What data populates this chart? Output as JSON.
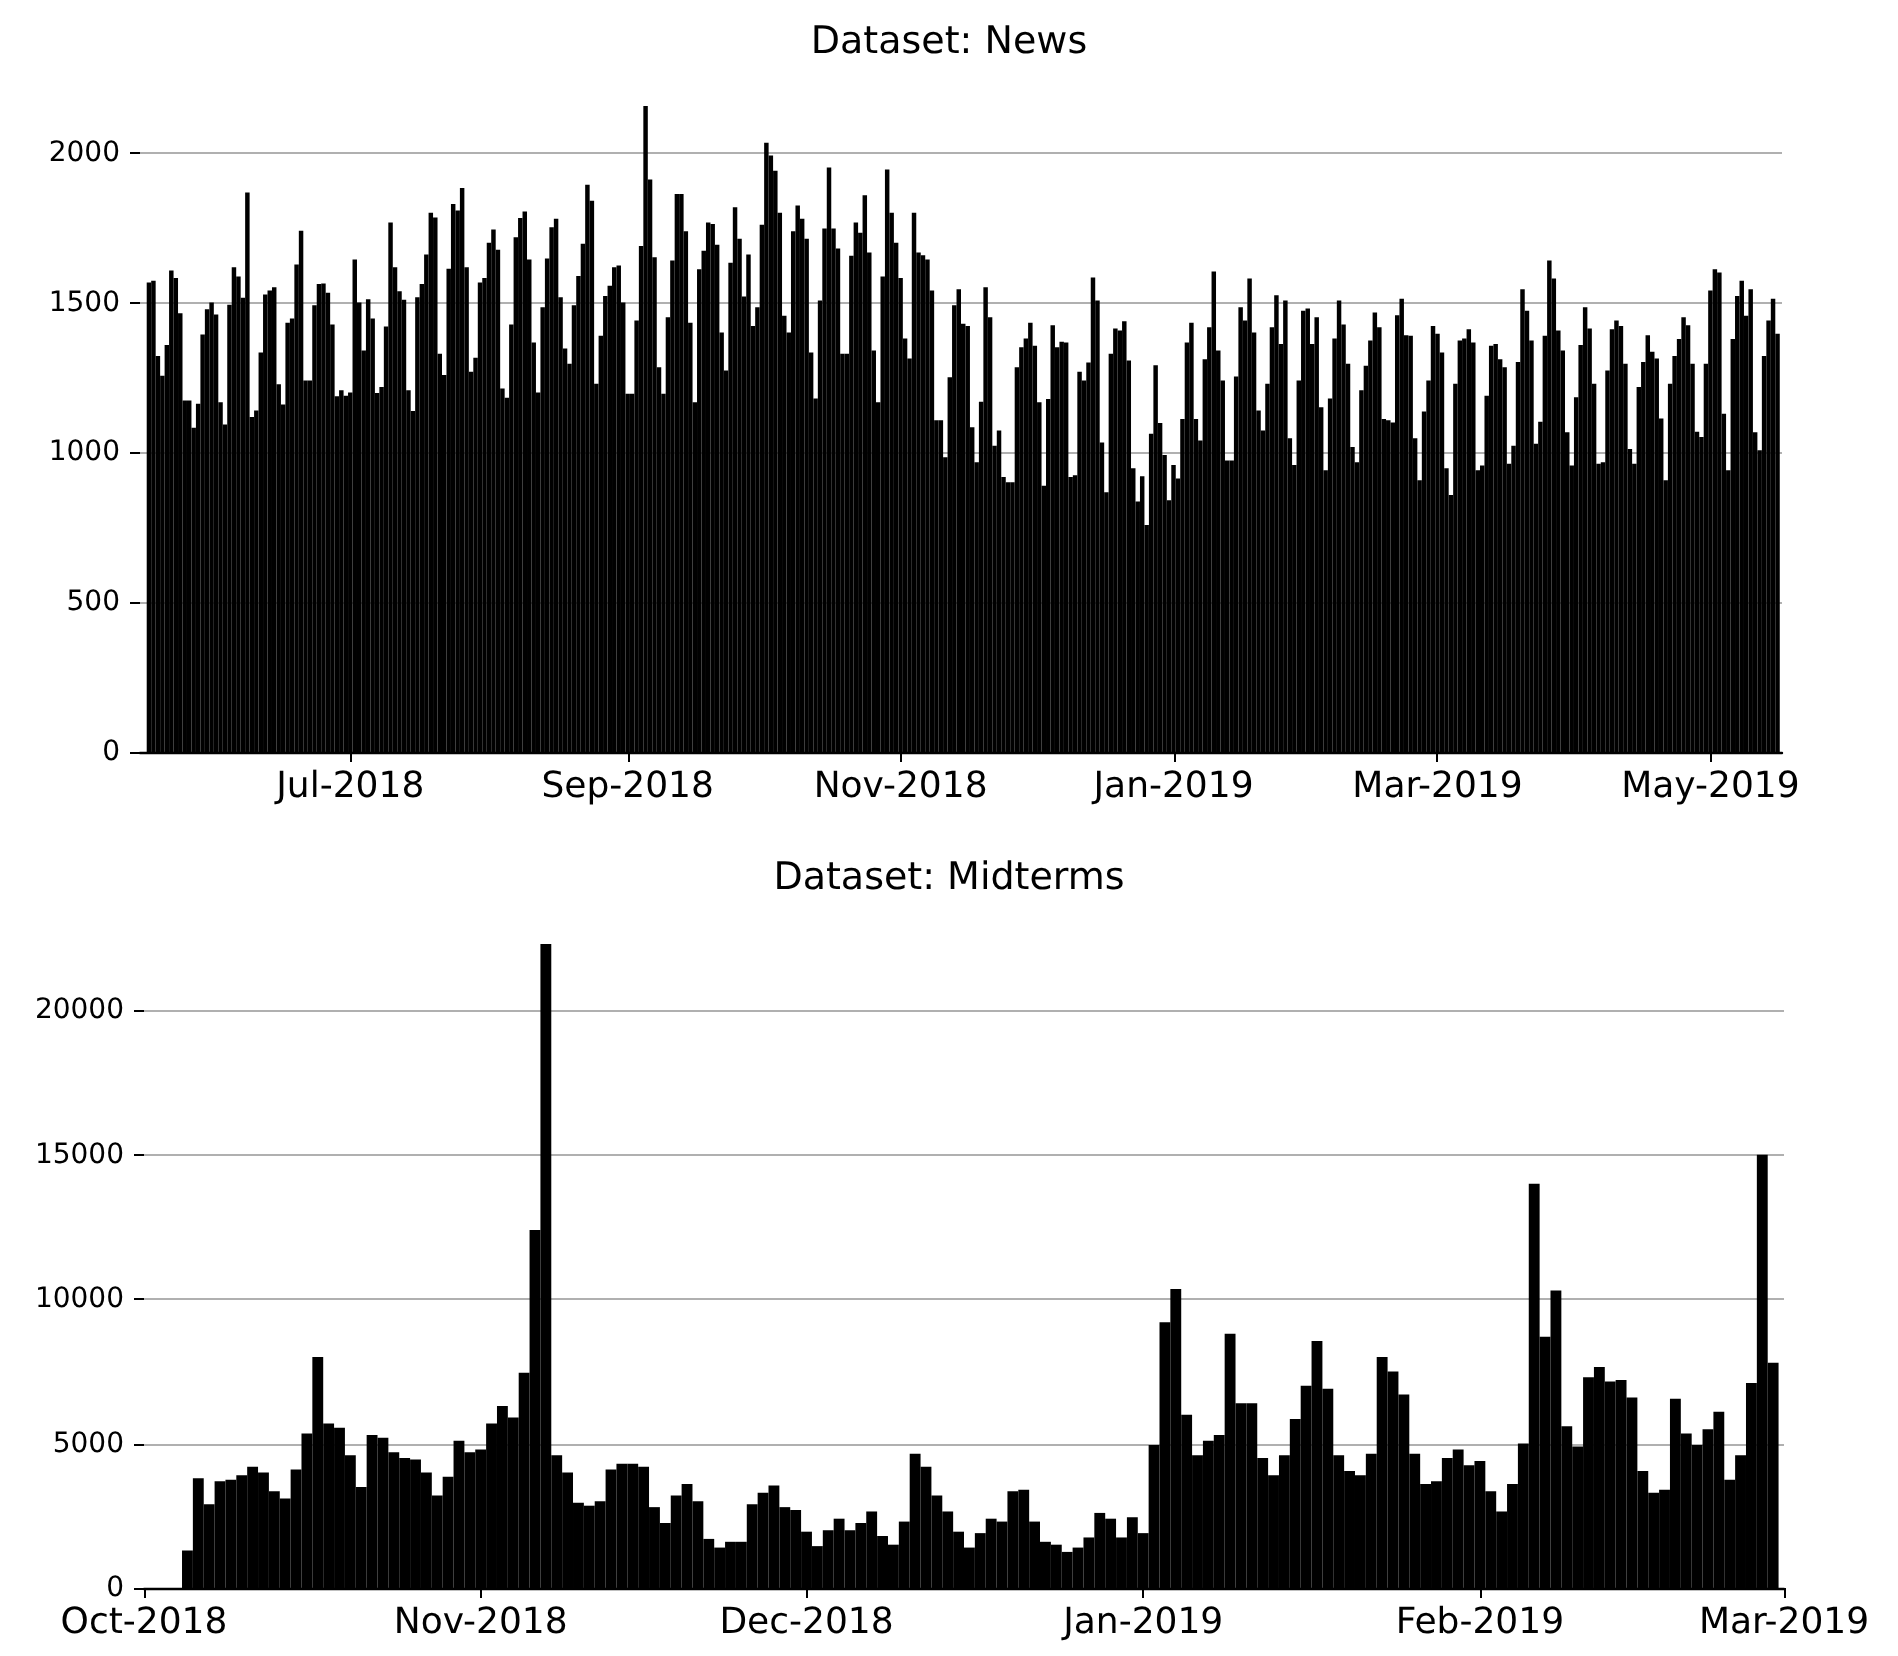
{
  "chart_data": [
    {
      "type": "bar",
      "title": "Dataset: News",
      "color": "#000000",
      "grid": "y",
      "ylim": [
        0,
        2156
      ],
      "yticks": [
        0,
        500,
        1000,
        1500,
        2000
      ],
      "xlim": [
        "2018-05-15",
        "2019-05-17"
      ],
      "xticks": [
        {
          "value": "2018-07-01",
          "label": "Jul-2018"
        },
        {
          "value": "2018-09-01",
          "label": "Sep-2018"
        },
        {
          "value": "2018-11-01",
          "label": "Nov-2018"
        },
        {
          "value": "2019-01-01",
          "label": "Jan-2019"
        },
        {
          "value": "2019-03-01",
          "label": "Mar-2019"
        },
        {
          "value": "2019-05-01",
          "label": "May-2019"
        }
      ],
      "x": [
        "2018-05-17",
        "2018-05-18",
        "2018-05-19",
        "2018-05-20",
        "2018-05-21",
        "2018-05-22",
        "2018-05-23",
        "2018-05-24",
        "2018-05-25",
        "2018-05-26",
        "2018-05-27",
        "2018-05-28",
        "2018-05-29",
        "2018-05-30",
        "2018-05-31",
        "2018-06-01",
        "2018-06-02",
        "2018-06-03",
        "2018-06-04",
        "2018-06-05",
        "2018-06-06",
        "2018-06-07",
        "2018-06-08",
        "2018-06-09",
        "2018-06-10",
        "2018-06-11",
        "2018-06-12",
        "2018-06-13",
        "2018-06-14",
        "2018-06-15",
        "2018-06-16",
        "2018-06-17",
        "2018-06-18",
        "2018-06-19",
        "2018-06-20",
        "2018-06-21",
        "2018-06-22",
        "2018-06-23",
        "2018-06-24",
        "2018-06-25",
        "2018-06-26",
        "2018-06-27",
        "2018-06-28",
        "2018-06-29",
        "2018-06-30",
        "2018-07-01",
        "2018-07-02",
        "2018-07-03",
        "2018-07-04",
        "2018-07-05",
        "2018-07-06",
        "2018-07-07",
        "2018-07-08",
        "2018-07-09",
        "2018-07-10",
        "2018-07-11",
        "2018-07-12",
        "2018-07-13",
        "2018-07-14",
        "2018-07-15",
        "2018-07-16",
        "2018-07-17",
        "2018-07-18",
        "2018-07-19",
        "2018-07-20",
        "2018-07-21",
        "2018-07-22",
        "2018-07-23",
        "2018-07-24",
        "2018-07-25",
        "2018-07-26",
        "2018-07-27",
        "2018-07-28",
        "2018-07-29",
        "2018-07-30",
        "2018-07-31",
        "2018-08-01",
        "2018-08-02",
        "2018-08-03",
        "2018-08-04",
        "2018-08-05",
        "2018-08-06",
        "2018-08-07",
        "2018-08-08",
        "2018-08-09",
        "2018-08-10",
        "2018-08-11",
        "2018-08-12",
        "2018-08-13",
        "2018-08-14",
        "2018-08-15",
        "2018-08-16",
        "2018-08-17",
        "2018-08-18",
        "2018-08-19",
        "2018-08-20",
        "2018-08-21",
        "2018-08-22",
        "2018-08-23",
        "2018-08-24",
        "2018-08-25",
        "2018-08-26",
        "2018-08-27",
        "2018-08-28",
        "2018-08-29",
        "2018-08-30",
        "2018-08-31",
        "2018-09-01",
        "2018-09-02",
        "2018-09-03",
        "2018-09-04",
        "2018-09-05",
        "2018-09-06",
        "2018-09-07",
        "2018-09-08",
        "2018-09-09",
        "2018-09-10",
        "2018-09-11",
        "2018-09-12",
        "2018-09-13",
        "2018-09-14",
        "2018-09-15",
        "2018-09-16",
        "2018-09-17",
        "2018-09-18",
        "2018-09-19",
        "2018-09-20",
        "2018-09-21",
        "2018-09-22",
        "2018-09-23",
        "2018-09-24",
        "2018-09-25",
        "2018-09-26",
        "2018-09-27",
        "2018-09-28",
        "2018-09-29",
        "2018-09-30",
        "2018-10-01",
        "2018-10-02",
        "2018-10-03",
        "2018-10-04",
        "2018-10-05",
        "2018-10-06",
        "2018-10-07",
        "2018-10-08",
        "2018-10-09",
        "2018-10-10",
        "2018-10-11",
        "2018-10-12",
        "2018-10-13",
        "2018-10-14",
        "2018-10-15",
        "2018-10-16",
        "2018-10-17",
        "2018-10-18",
        "2018-10-19",
        "2018-10-20",
        "2018-10-21",
        "2018-10-22",
        "2018-10-23",
        "2018-10-24",
        "2018-10-25",
        "2018-10-26",
        "2018-10-27",
        "2018-10-28",
        "2018-10-29",
        "2018-10-30",
        "2018-10-31",
        "2018-11-01",
        "2018-11-02",
        "2018-11-03",
        "2018-11-04",
        "2018-11-05",
        "2018-11-06",
        "2018-11-07",
        "2018-11-08",
        "2018-11-09",
        "2018-11-10",
        "2018-11-11",
        "2018-11-12",
        "2018-11-13",
        "2018-11-14",
        "2018-11-15",
        "2018-11-16",
        "2018-11-17",
        "2018-11-18",
        "2018-11-19",
        "2018-11-20",
        "2018-11-21",
        "2018-11-22",
        "2018-11-23",
        "2018-11-24",
        "2018-11-25",
        "2018-11-26",
        "2018-11-27",
        "2018-11-28",
        "2018-11-29",
        "2018-11-30",
        "2018-12-01",
        "2018-12-02",
        "2018-12-03",
        "2018-12-04",
        "2018-12-05",
        "2018-12-06",
        "2018-12-07",
        "2018-12-08",
        "2018-12-09",
        "2018-12-10",
        "2018-12-11",
        "2018-12-12",
        "2018-12-13",
        "2018-12-14",
        "2018-12-15",
        "2018-12-16",
        "2018-12-17",
        "2018-12-18",
        "2018-12-19",
        "2018-12-20",
        "2018-12-21",
        "2018-12-22",
        "2018-12-23",
        "2018-12-24",
        "2018-12-25",
        "2018-12-26",
        "2018-12-27",
        "2018-12-28",
        "2018-12-29",
        "2018-12-30",
        "2018-12-31",
        "2019-01-01",
        "2019-01-02",
        "2019-01-03",
        "2019-01-04",
        "2019-01-05",
        "2019-01-06",
        "2019-01-07",
        "2019-01-08",
        "2019-01-09",
        "2019-01-10",
        "2019-01-11",
        "2019-01-12",
        "2019-01-13",
        "2019-01-14",
        "2019-01-15",
        "2019-01-16",
        "2019-01-17",
        "2019-01-18",
        "2019-01-19",
        "2019-01-20",
        "2019-01-21",
        "2019-01-22",
        "2019-01-23",
        "2019-01-24",
        "2019-01-25",
        "2019-01-26",
        "2019-01-27",
        "2019-01-28",
        "2019-01-29",
        "2019-01-30",
        "2019-01-31",
        "2019-02-01",
        "2019-02-02",
        "2019-02-03",
        "2019-02-04",
        "2019-02-05",
        "2019-02-06",
        "2019-02-07",
        "2019-02-08",
        "2019-02-09",
        "2019-02-10",
        "2019-02-11",
        "2019-02-12",
        "2019-02-13",
        "2019-02-14",
        "2019-02-15",
        "2019-02-16",
        "2019-02-17",
        "2019-02-18",
        "2019-02-19",
        "2019-02-20",
        "2019-02-21",
        "2019-02-22",
        "2019-02-23",
        "2019-02-24",
        "2019-02-25",
        "2019-02-26",
        "2019-02-27",
        "2019-02-28",
        "2019-03-01",
        "2019-03-02",
        "2019-03-03",
        "2019-03-04",
        "2019-03-05",
        "2019-03-06",
        "2019-03-07",
        "2019-03-08",
        "2019-03-09",
        "2019-03-10",
        "2019-03-11",
        "2019-03-12",
        "2019-03-13",
        "2019-03-14",
        "2019-03-15",
        "2019-03-16",
        "2019-03-17",
        "2019-03-18",
        "2019-03-19",
        "2019-03-20",
        "2019-03-21",
        "2019-03-22",
        "2019-03-23",
        "2019-03-24",
        "2019-03-25",
        "2019-03-26",
        "2019-03-27",
        "2019-03-28",
        "2019-03-29",
        "2019-03-30",
        "2019-03-31",
        "2019-04-01",
        "2019-04-02",
        "2019-04-03",
        "2019-04-04",
        "2019-04-05",
        "2019-04-06",
        "2019-04-07",
        "2019-04-08",
        "2019-04-09",
        "2019-04-10",
        "2019-04-11",
        "2019-04-12",
        "2019-04-13",
        "2019-04-14",
        "2019-04-15",
        "2019-04-16",
        "2019-04-17",
        "2019-04-18",
        "2019-04-19",
        "2019-04-20",
        "2019-04-21",
        "2019-04-22",
        "2019-04-23",
        "2019-04-24",
        "2019-04-25",
        "2019-04-26",
        "2019-04-27",
        "2019-04-28",
        "2019-04-29",
        "2019-04-30",
        "2019-05-01",
        "2019-05-02",
        "2019-05-03",
        "2019-05-04",
        "2019-05-05",
        "2019-05-06",
        "2019-05-07",
        "2019-05-08",
        "2019-05-09",
        "2019-05-10",
        "2019-05-11",
        "2019-05-12",
        "2019-05-13",
        "2019-05-14",
        "2019-05-15",
        "2019-05-16"
      ],
      "values": [
        1567,
        1573,
        1322,
        1256,
        1358,
        1607,
        1582,
        1464,
        1173,
        1173,
        1082,
        1162,
        1393,
        1478,
        1500,
        1460,
        1167,
        1093,
        1493,
        1618,
        1587,
        1516,
        1867,
        1118,
        1140,
        1333,
        1527,
        1540,
        1551,
        1227,
        1160,
        1433,
        1447,
        1627,
        1740,
        1240,
        1240,
        1491,
        1562,
        1564,
        1533,
        1427,
        1187,
        1207,
        1189,
        1200,
        1644,
        1500,
        1340,
        1511,
        1447,
        1198,
        1218,
        1420,
        1767,
        1618,
        1538,
        1509,
        1207,
        1138,
        1518,
        1562,
        1660,
        1800,
        1784,
        1329,
        1258,
        1613,
        1829,
        1807,
        1882,
        1618,
        1269,
        1316,
        1567,
        1582,
        1700,
        1744,
        1676,
        1213,
        1182,
        1427,
        1718,
        1782,
        1804,
        1644,
        1367,
        1200,
        1484,
        1647,
        1751,
        1780,
        1518,
        1347,
        1296,
        1491,
        1589,
        1696,
        1893,
        1840,
        1229,
        1389,
        1522,
        1556,
        1618,
        1624,
        1500,
        1196,
        1196,
        1440,
        1689,
        2156,
        1911,
        1651,
        1284,
        1196,
        1451,
        1640,
        1862,
        1862,
        1738,
        1433,
        1167,
        1611,
        1673,
        1767,
        1762,
        1693,
        1400,
        1273,
        1633,
        1818,
        1713,
        1520,
        1660,
        1422,
        1484,
        1760,
        2033,
        1991,
        1940,
        1800,
        1456,
        1400,
        1738,
        1824,
        1780,
        1713,
        1333,
        1180,
        1507,
        1747,
        1951,
        1747,
        1680,
        1329,
        1329,
        1656,
        1767,
        1733,
        1858,
        1667,
        1340,
        1167,
        1587,
        1944,
        1800,
        1700,
        1582,
        1380,
        1313,
        1800,
        1667,
        1658,
        1644,
        1540,
        1107,
        1107,
        984,
        1251,
        1491,
        1544,
        1429,
        1422,
        1084,
        967,
        1169,
        1551,
        1451,
        1022,
        1073,
        918,
        900,
        900,
        1284,
        1351,
        1380,
        1433,
        1356,
        1167,
        889,
        1178,
        1424,
        1351,
        1369,
        1367,
        918,
        924,
        1269,
        1240,
        1300,
        1584,
        1507,
        1033,
        867,
        1329,
        1413,
        1407,
        1438,
        1307,
        947,
        836,
        920,
        758,
        1062,
        1291,
        1098,
        991,
        840,
        958,
        913,
        1111,
        1367,
        1433,
        1111,
        1040,
        1311,
        1418,
        1604,
        1340,
        1240,
        973,
        973,
        1253,
        1484,
        1440,
        1580,
        1400,
        1140,
        1073,
        1229,
        1418,
        1524,
        1362,
        1507,
        1047,
        958,
        1240,
        1473,
        1480,
        1362,
        1451,
        1151,
        940,
        1180,
        1380,
        1507,
        1427,
        1296,
        1018,
        967,
        1207,
        1289,
        1373,
        1467,
        1418,
        1111,
        1107,
        1100,
        1458,
        1513,
        1391,
        1389,
        1047,
        907,
        1136,
        1240,
        1422,
        1396,
        1333,
        947,
        858,
        1229,
        1373,
        1380,
        1411,
        1367,
        940,
        956,
        1189,
        1356,
        1362,
        1311,
        1284,
        962,
        1022,
        1302,
        1544,
        1473,
        1373,
        1029,
        1102,
        1389,
        1640,
        1580,
        1407,
        1340,
        1067,
        956,
        1184,
        1358,
        1484,
        1413,
        1229,
        962,
        967,
        1273,
        1411,
        1440,
        1422,
        1296,
        1011,
        962,
        1218,
        1302,
        1391,
        1336,
        1313,
        1113,
        907,
        1229,
        1322,
        1378,
        1451,
        1424,
        1296,
        1069,
        1051,
        1296,
        1540,
        1611,
        1600,
        1129,
        940,
        1378,
        1522,
        1573,
        1456,
        1544,
        1067,
        1007,
        1322,
        1440,
        1513,
        1396
      ]
    },
    {
      "type": "bar",
      "title": "Dataset: Midterms",
      "color": "#000000",
      "grid": "y",
      "ylim": [
        0,
        22300
      ],
      "yticks": [
        0,
        5000,
        10000,
        15000,
        20000
      ],
      "xlim": [
        "2018-10-01",
        "2019-03-01"
      ],
      "xticks": [
        {
          "value": "2018-10-01",
          "label": "Oct-2018"
        },
        {
          "value": "2018-11-01",
          "label": "Nov-2018"
        },
        {
          "value": "2018-12-01",
          "label": "Dec-2018"
        },
        {
          "value": "2019-01-01",
          "label": "Jan-2019"
        },
        {
          "value": "2019-02-01",
          "label": "Feb-2019"
        },
        {
          "value": "2019-03-01",
          "label": "Mar-2019"
        }
      ],
      "x": [
        "2018-10-05",
        "2018-10-06",
        "2018-10-07",
        "2018-10-08",
        "2018-10-09",
        "2018-10-10",
        "2018-10-11",
        "2018-10-12",
        "2018-10-13",
        "2018-10-14",
        "2018-10-15",
        "2018-10-16",
        "2018-10-17",
        "2018-10-18",
        "2018-10-19",
        "2018-10-20",
        "2018-10-21",
        "2018-10-22",
        "2018-10-23",
        "2018-10-24",
        "2018-10-25",
        "2018-10-26",
        "2018-10-27",
        "2018-10-28",
        "2018-10-29",
        "2018-10-30",
        "2018-10-31",
        "2018-11-01",
        "2018-11-02",
        "2018-11-03",
        "2018-11-04",
        "2018-11-05",
        "2018-11-06",
        "2018-11-07",
        "2018-11-08",
        "2018-11-09",
        "2018-11-10",
        "2018-11-11",
        "2018-11-12",
        "2018-11-13",
        "2018-11-14",
        "2018-11-15",
        "2018-11-16",
        "2018-11-17",
        "2018-11-18",
        "2018-11-19",
        "2018-11-20",
        "2018-11-21",
        "2018-11-22",
        "2018-11-23",
        "2018-11-24",
        "2018-11-25",
        "2018-11-26",
        "2018-11-27",
        "2018-11-28",
        "2018-11-29",
        "2018-11-30",
        "2018-12-01",
        "2018-12-02",
        "2018-12-03",
        "2018-12-04",
        "2018-12-05",
        "2018-12-06",
        "2018-12-07",
        "2018-12-08",
        "2018-12-09",
        "2018-12-10",
        "2018-12-11",
        "2018-12-12",
        "2018-12-13",
        "2018-12-14",
        "2018-12-15",
        "2018-12-16",
        "2018-12-17",
        "2018-12-18",
        "2018-12-19",
        "2018-12-20",
        "2018-12-21",
        "2018-12-22",
        "2018-12-23",
        "2018-12-24",
        "2018-12-25",
        "2018-12-26",
        "2018-12-27",
        "2018-12-28",
        "2018-12-29",
        "2018-12-30",
        "2018-12-31",
        "2019-01-01",
        "2019-01-02",
        "2019-01-03",
        "2019-01-04",
        "2019-01-05",
        "2019-01-06",
        "2019-01-07",
        "2019-01-08",
        "2019-01-09",
        "2019-01-10",
        "2019-01-11",
        "2019-01-12",
        "2019-01-13",
        "2019-01-14",
        "2019-01-15",
        "2019-01-16",
        "2019-01-17",
        "2019-01-18",
        "2019-01-19",
        "2019-01-20",
        "2019-01-21",
        "2019-01-22",
        "2019-01-23",
        "2019-01-24",
        "2019-01-25",
        "2019-01-26",
        "2019-01-27",
        "2019-01-28",
        "2019-01-29",
        "2019-01-30",
        "2019-01-31",
        "2019-02-01",
        "2019-02-02",
        "2019-02-03",
        "2019-02-04",
        "2019-02-05",
        "2019-02-06",
        "2019-02-07",
        "2019-02-08",
        "2019-02-09",
        "2019-02-10",
        "2019-02-11",
        "2019-02-12",
        "2019-02-13",
        "2019-02-14",
        "2019-02-15",
        "2019-02-16",
        "2019-02-17",
        "2019-02-18",
        "2019-02-19",
        "2019-02-20",
        "2019-02-21",
        "2019-02-22",
        "2019-02-23",
        "2019-02-24",
        "2019-02-25",
        "2019-02-26",
        "2019-02-27",
        "2019-02-28"
      ],
      "values": [
        1300,
        3800,
        2900,
        3700,
        3750,
        3900,
        4200,
        4000,
        3350,
        3100,
        4100,
        5350,
        8000,
        5700,
        5550,
        4600,
        3500,
        5300,
        5200,
        4700,
        4500,
        4450,
        4000,
        3200,
        3850,
        5100,
        4700,
        4800,
        5700,
        6300,
        5900,
        7450,
        12400,
        22300,
        4600,
        4000,
        2950,
        2850,
        3000,
        4100,
        4300,
        4300,
        4200,
        2800,
        2250,
        3200,
        3600,
        3000,
        1700,
        1400,
        1600,
        1600,
        2900,
        3300,
        3550,
        2800,
        2700,
        1950,
        1450,
        2000,
        2400,
        2000,
        2250,
        2650,
        1800,
        1500,
        2300,
        4650,
        4200,
        3200,
        2650,
        1950,
        1400,
        1900,
        2400,
        2300,
        3350,
        3400,
        2300,
        1600,
        1500,
        1250,
        1400,
        1750,
        2600,
        2400,
        1750,
        2450,
        1900,
        4950,
        9200,
        10350,
        6000,
        4600,
        5100,
        5300,
        8800,
        6400,
        6400,
        4500,
        3900,
        4600,
        5850,
        7000,
        8550,
        6900,
        4600,
        4050,
        3900,
        4650,
        8000,
        7500,
        6700,
        4650,
        3600,
        3700,
        4500,
        4800,
        4250,
        4400,
        3350,
        2650,
        3600,
        5000,
        14000,
        8700,
        10300,
        5600,
        4900,
        7300,
        7650,
        7150,
        7200,
        6600,
        4050,
        3300,
        3400,
        6550,
        5350,
        4950,
        5500,
        6100,
        3750,
        4600,
        7100,
        15000,
        7800
      ]
    }
  ]
}
